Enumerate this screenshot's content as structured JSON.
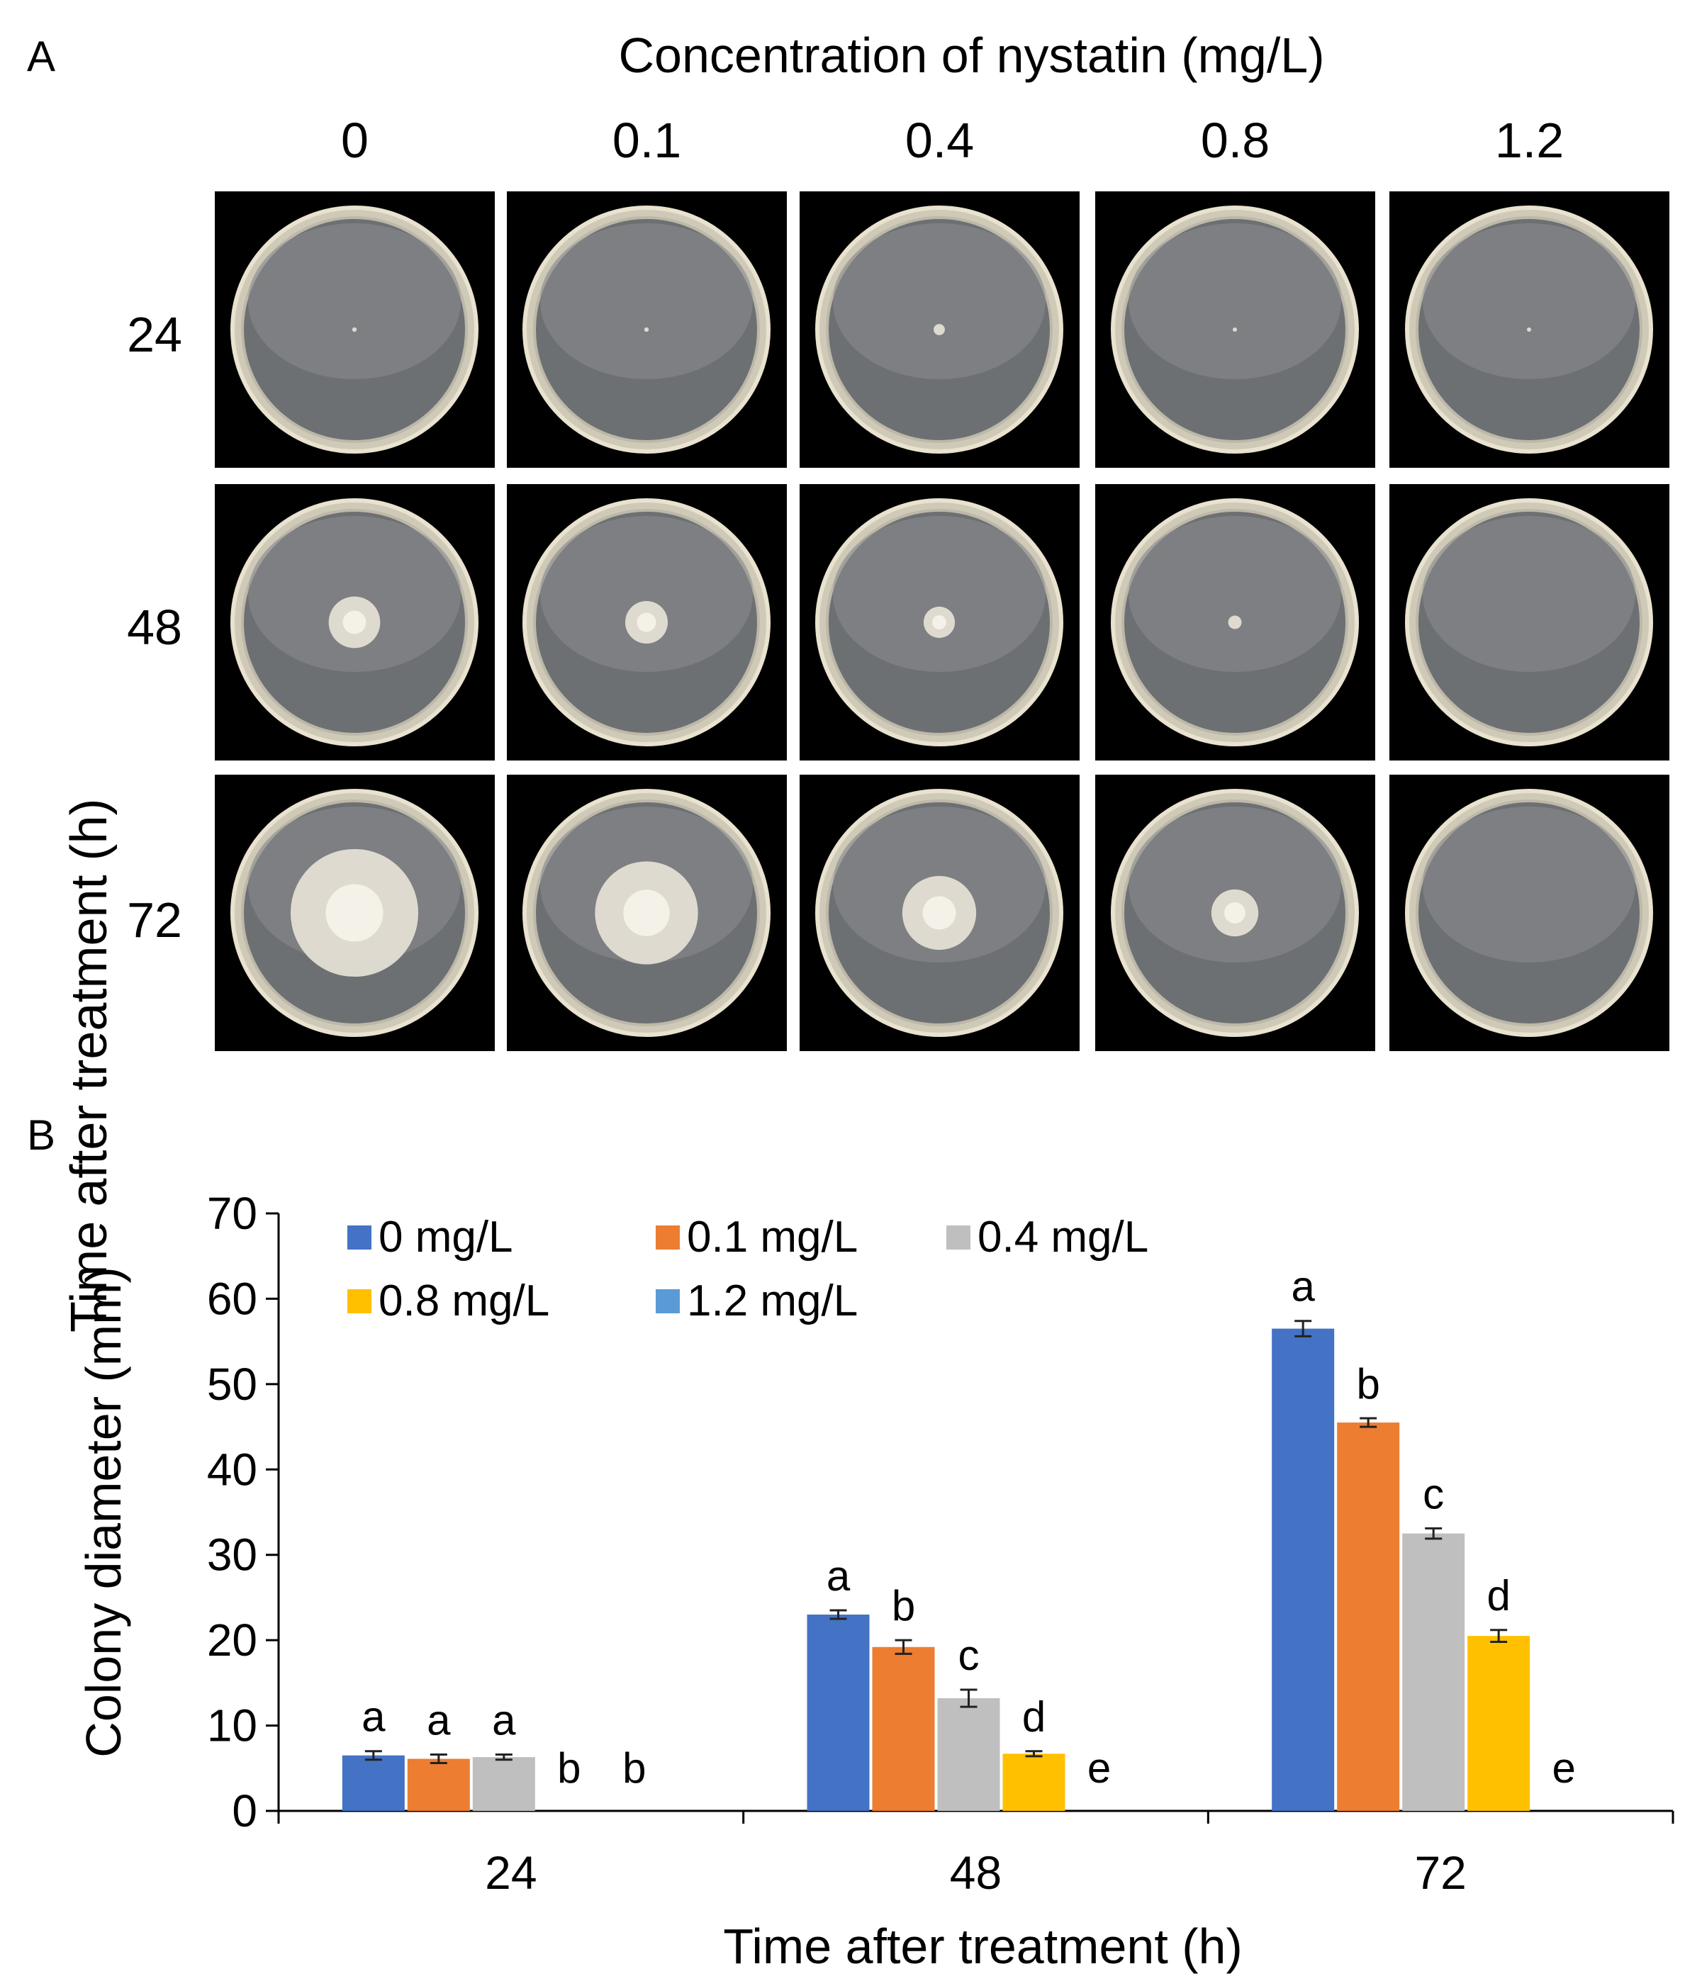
{
  "panel_a": {
    "label": "A",
    "title": "Concentration of nystatin (mg/L)",
    "y_title": "Time after treatment (h)",
    "concentrations": [
      "0",
      "0.1",
      "0.4",
      "0.8",
      "1.2"
    ],
    "times": [
      "24",
      "48",
      "72"
    ],
    "colony_relative_size": [
      [
        0.02,
        0.02,
        0.05,
        0.01,
        0.01
      ],
      [
        0.23,
        0.19,
        0.14,
        0.06,
        0.0
      ],
      [
        0.57,
        0.46,
        0.33,
        0.21,
        0.0
      ]
    ]
  },
  "panel_b": {
    "label": "B"
  },
  "chart_data": {
    "type": "bar",
    "categories": [
      "24",
      "48",
      "72"
    ],
    "xlabel": "Time after treatment (h)",
    "ylabel": "Colony diameter (mm)",
    "ylim": [
      0,
      70
    ],
    "yticks": [
      0,
      10,
      20,
      30,
      40,
      50,
      60,
      70
    ],
    "legend_position": "top-left",
    "series": [
      {
        "name": "0 mg/L",
        "color": "#4472C4",
        "values": [
          6.5,
          23.0,
          56.5
        ],
        "errors": [
          0.5,
          0.5,
          0.9
        ],
        "letters": [
          "a",
          "a",
          "a"
        ]
      },
      {
        "name": "0.1 mg/L",
        "color": "#ED7D31",
        "values": [
          6.1,
          19.2,
          45.5
        ],
        "errors": [
          0.5,
          0.8,
          0.5
        ],
        "letters": [
          "a",
          "b",
          "b"
        ]
      },
      {
        "name": "0.4 mg/L",
        "color": "#BFBFBF",
        "values": [
          6.3,
          13.2,
          32.5
        ],
        "errors": [
          0.3,
          1.0,
          0.6
        ],
        "letters": [
          "a",
          "c",
          "c"
        ]
      },
      {
        "name": "0.8 mg/L",
        "color": "#FFC000",
        "values": [
          0,
          6.7,
          20.5
        ],
        "errors": [
          0,
          0.3,
          0.7
        ],
        "letters": [
          "b",
          "d",
          "d"
        ]
      },
      {
        "name": "1.2 mg/L",
        "color": "#5B9BD5",
        "values": [
          0,
          0,
          0
        ],
        "errors": [
          0,
          0,
          0
        ],
        "letters": [
          "b",
          "e",
          "e"
        ]
      }
    ]
  }
}
